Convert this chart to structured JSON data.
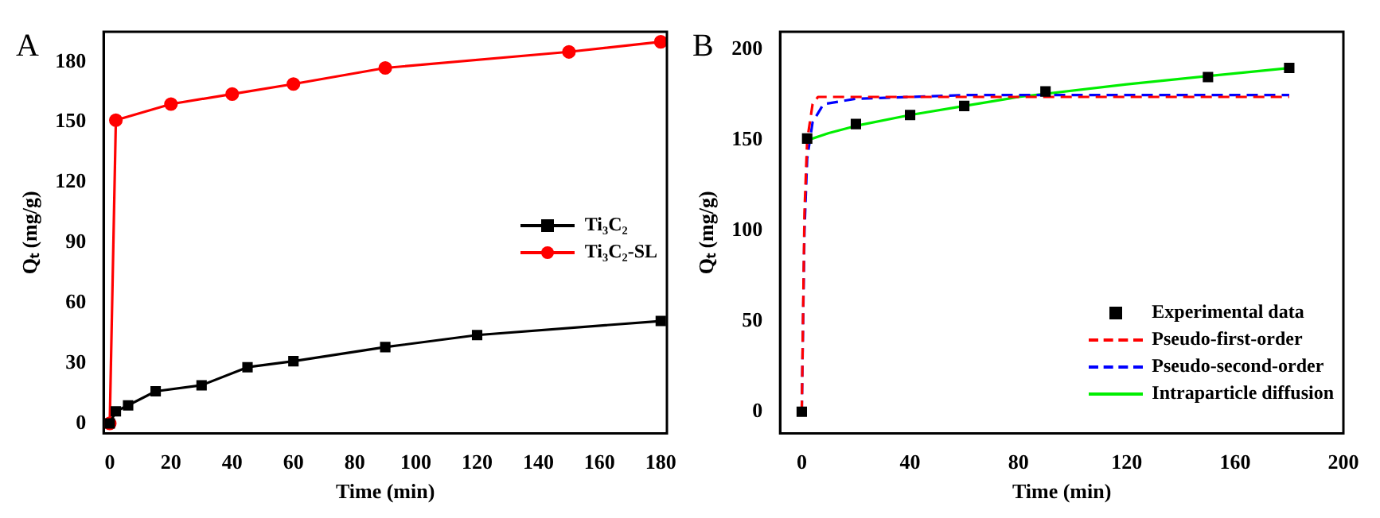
{
  "chart_data": [
    {
      "type": "line",
      "annotations": [
        "A"
      ],
      "xlabel": "Time (min)",
      "ylabel": "Qₜ (mg/g)",
      "xlim": [
        -2,
        182
      ],
      "xticks": [
        0,
        20,
        40,
        60,
        80,
        100,
        120,
        140,
        160,
        180
      ],
      "ylim": [
        -5,
        195
      ],
      "yticks": [
        0,
        30,
        60,
        90,
        120,
        150,
        180
      ],
      "grid": false,
      "legend": "right",
      "series": [
        {
          "name": "Ti₃C₂",
          "color": "#000000",
          "marker": "square",
          "x": [
            0,
            2,
            6,
            15,
            30,
            45,
            60,
            90,
            120,
            180
          ],
          "values": [
            0,
            6,
            9,
            16,
            19,
            28,
            31,
            38,
            44,
            51
          ]
        },
        {
          "name": "Ti₃C₂-SL",
          "color": "#ff0000",
          "marker": "circle",
          "x": [
            0,
            2,
            20,
            40,
            60,
            90,
            150,
            180
          ],
          "values": [
            0,
            151,
            159,
            164,
            169,
            177,
            185,
            190
          ]
        }
      ]
    },
    {
      "type": "line",
      "annotations": [
        "B"
      ],
      "xlabel": "Time (min)",
      "ylabel": "Qₜ (mg/g)",
      "xlim": [
        -8,
        200
      ],
      "xticks": [
        0,
        40,
        80,
        120,
        160,
        200
      ],
      "ylim": [
        -12,
        210
      ],
      "yticks": [
        0,
        50,
        100,
        150,
        200
      ],
      "grid": false,
      "legend": "bottom right",
      "series": [
        {
          "name": "Experimental data",
          "type": "scatter",
          "color": "#000000",
          "marker": "square",
          "x": [
            0,
            2,
            20,
            40,
            60,
            90,
            150,
            180
          ],
          "values": [
            0,
            151,
            159,
            164,
            169,
            177,
            185,
            190
          ]
        },
        {
          "name": "Pseudo-first-order",
          "color": "#ff0000",
          "marker": "none",
          "line_style": "dashed",
          "x": [
            0,
            1,
            2,
            4,
            6,
            180
          ],
          "values": [
            0,
            110,
            150,
            170,
            174,
            174
          ]
        },
        {
          "name": "Pseudo-second-order",
          "color": "#0000ff",
          "marker": "none",
          "line_style": "dashed",
          "x": [
            0,
            1,
            2,
            4,
            8,
            20,
            60,
            180
          ],
          "values": [
            0,
            100,
            140,
            160,
            170,
            173,
            175,
            175
          ]
        },
        {
          "name": "Intraparticle diffusion",
          "color": "#00ee00",
          "marker": "none",
          "line_style": "solid",
          "x": [
            2,
            10,
            20,
            40,
            60,
            80,
            120,
            160,
            180
          ],
          "values": [
            150,
            154,
            158,
            164,
            169,
            174,
            181,
            187,
            190
          ]
        }
      ]
    }
  ]
}
